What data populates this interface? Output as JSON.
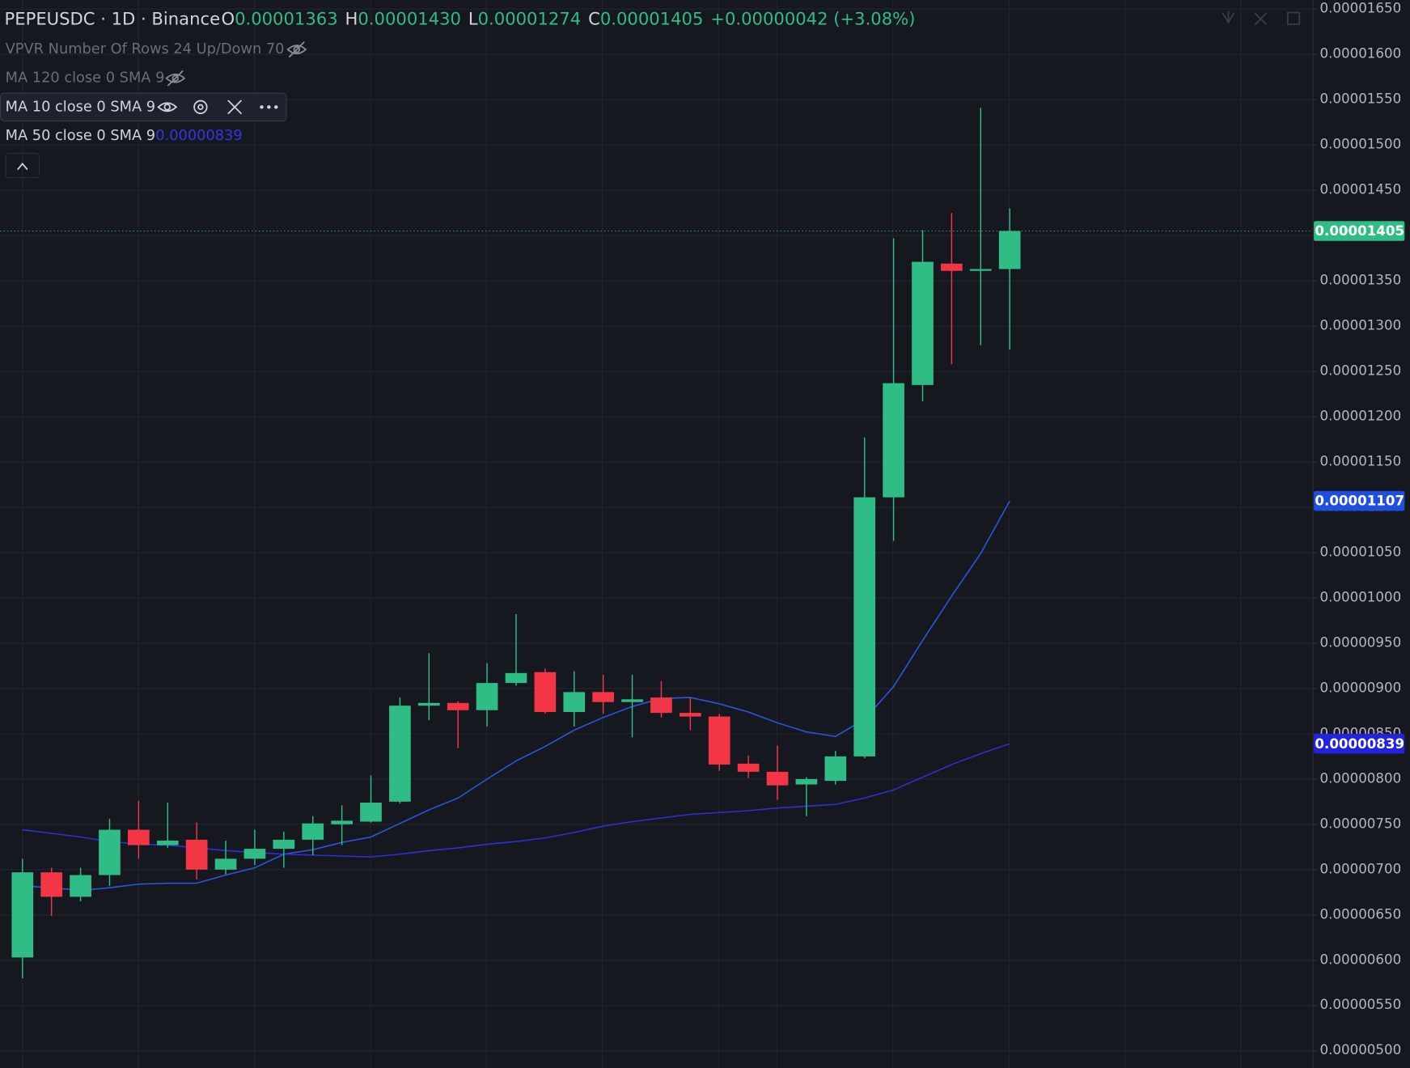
{
  "header": {
    "symbol": "PEPEUSDC · 1D · Binance",
    "ohlc": [
      {
        "key": "O",
        "value": "0.00001363"
      },
      {
        "key": "H",
        "value": "0.00001430"
      },
      {
        "key": "L",
        "value": "0.00001274"
      },
      {
        "key": "C",
        "value": "0.00001405"
      }
    ],
    "change": "+0.00000042 (+3.08%)",
    "indicators": [
      "VPVR Number Of Rows 24 Up/Down 70",
      "MA 120 close 0 SMA 9"
    ]
  },
  "chart_data": {
    "type": "candlestick",
    "up_color": "#2fbd85",
    "down_color": "#f23645",
    "grid": true,
    "open": [
      6.03e-06,
      6.97e-06,
      6.7e-06,
      6.94e-06,
      7.44e-06,
      7.27e-06,
      7.33e-06,
      7e-06,
      7.12e-06,
      7.23e-06,
      7.33e-06,
      7.5e-06,
      7.53e-06,
      7.75e-06,
      8.81e-06,
      8.84e-06,
      8.76e-06,
      9.06e-06,
      9.18e-06,
      8.74e-06,
      8.96e-06,
      8.85e-06,
      8.9e-06,
      8.73e-06,
      8.69e-06,
      8.17e-06,
      8.08e-06,
      7.94e-06,
      7.98e-06,
      8.25e-06,
      1.111e-05,
      1.235e-05,
      1.369e-05,
      1.361e-05,
      1.363e-05
    ],
    "high": [
      7.12e-06,
      7.02e-06,
      7.02e-06,
      7.56e-06,
      7.76e-06,
      7.74e-06,
      7.52e-06,
      7.32e-06,
      7.44e-06,
      7.42e-06,
      7.59e-06,
      7.71e-06,
      8.04e-06,
      8.9e-06,
      9.39e-06,
      8.86e-06,
      9.28e-06,
      9.82e-06,
      9.22e-06,
      9.19e-06,
      9.15e-06,
      9.15e-06,
      9.08e-06,
      8.9e-06,
      8.72e-06,
      8.26e-06,
      8.37e-06,
      8.02e-06,
      8.31e-06,
      1.177e-05,
      1.397e-05,
      1.406e-05,
      1.425e-05,
      1.541e-05,
      1.43e-05
    ],
    "low": [
      5.8e-06,
      6.49e-06,
      6.65e-06,
      6.82e-06,
      7.12e-06,
      7.24e-06,
      6.89e-06,
      6.95e-06,
      7.05e-06,
      7.02e-06,
      7.16e-06,
      7.27e-06,
      7.52e-06,
      7.73e-06,
      8.65e-06,
      8.34e-06,
      8.58e-06,
      9.03e-06,
      8.72e-06,
      8.58e-06,
      8.72e-06,
      8.46e-06,
      8.68e-06,
      8.54e-06,
      8.09e-06,
      8.01e-06,
      7.77e-06,
      7.59e-06,
      7.94e-06,
      8.23e-06,
      1.063e-05,
      1.217e-05,
      1.258e-05,
      1.279e-05,
      1.274e-05
    ],
    "close": [
      6.97e-06,
      6.7e-06,
      6.94e-06,
      7.44e-06,
      7.27e-06,
      7.32e-06,
      7e-06,
      7.12e-06,
      7.23e-06,
      7.33e-06,
      7.51e-06,
      7.54e-06,
      7.74e-06,
      8.81e-06,
      8.84e-06,
      8.76e-06,
      9.06e-06,
      9.17e-06,
      8.74e-06,
      8.96e-06,
      8.85e-06,
      8.88e-06,
      8.73e-06,
      8.69e-06,
      8.16e-06,
      8.08e-06,
      7.93e-06,
      8e-06,
      8.25e-06,
      1.111e-05,
      1.237e-05,
      1.371e-05,
      1.361e-05,
      1.363e-05,
      1.405e-05
    ],
    "series": [
      {
        "name": "MA 10 close 0 SMA 9",
        "color": "#2b57e0",
        "values": [
          6.82e-06,
          6.8e-06,
          6.77e-06,
          6.8e-06,
          6.84e-06,
          6.85e-06,
          6.85e-06,
          6.94e-06,
          7.02e-06,
          7.17e-06,
          7.22e-06,
          7.3e-06,
          7.36e-06,
          7.51e-06,
          7.66e-06,
          7.79e-06,
          8e-06,
          8.2e-06,
          8.36e-06,
          8.54e-06,
          8.68e-06,
          8.8e-06,
          8.89e-06,
          8.9e-06,
          8.83e-06,
          8.74e-06,
          8.62e-06,
          8.52e-06,
          8.47e-06,
          8.66e-06,
          9.02e-06,
          9.53e-06,
          1.002e-05,
          1.049e-05,
          1.107e-05
        ]
      },
      {
        "name": "MA 50 close 0 SMA 9",
        "color": "#2f2fd6",
        "values": [
          7.44e-06,
          7.4e-06,
          7.36e-06,
          7.31e-06,
          7.28e-06,
          7.27e-06,
          7.24e-06,
          7.21e-06,
          7.19e-06,
          7.17e-06,
          7.16e-06,
          7.15e-06,
          7.14e-06,
          7.17e-06,
          7.21e-06,
          7.24e-06,
          7.28e-06,
          7.31e-06,
          7.35e-06,
          7.41e-06,
          7.48e-06,
          7.53e-06,
          7.57e-06,
          7.61e-06,
          7.63e-06,
          7.65e-06,
          7.68e-06,
          7.7e-06,
          7.72e-06,
          7.79e-06,
          7.88e-06,
          8.02e-06,
          8.16e-06,
          8.28e-06,
          8.39e-06
        ]
      }
    ],
    "price_labels": [
      {
        "value": 1.405e-05,
        "label": "0.00001405",
        "color": "#2fbd85"
      },
      {
        "value": 1.107e-05,
        "label": "0.00001107",
        "color": "#1f4fe0"
      },
      {
        "value": 8.39e-06,
        "label": "0.00000839",
        "color": "#2222e0"
      }
    ],
    "ylim": [
      4.81e-06,
      1.66e-05
    ],
    "yticks": [
      {
        "value": 1.65e-05,
        "label": "0.00001650"
      },
      {
        "value": 1.6e-05,
        "label": "0.00001600"
      },
      {
        "value": 1.55e-05,
        "label": "0.00001550"
      },
      {
        "value": 1.5e-05,
        "label": "0.00001500"
      },
      {
        "value": 1.45e-05,
        "label": "0.00001450"
      },
      {
        "value": 1.4e-05,
        "label": "0.00001400"
      },
      {
        "value": 1.35e-05,
        "label": "0.00001350"
      },
      {
        "value": 1.3e-05,
        "label": "0.00001300"
      },
      {
        "value": 1.25e-05,
        "label": "0.00001250"
      },
      {
        "value": 1.2e-05,
        "label": "0.00001200"
      },
      {
        "value": 1.15e-05,
        "label": "0.00001150"
      },
      {
        "value": 1.1e-05,
        "label": "0.00001100"
      },
      {
        "value": 1.05e-05,
        "label": "0.00001050"
      },
      {
        "value": 1e-05,
        "label": "0.00001000"
      },
      {
        "value": 9.5e-06,
        "label": "0.00000950"
      },
      {
        "value": 9e-06,
        "label": "0.00000900"
      },
      {
        "value": 8.5e-06,
        "label": "0.00000850"
      },
      {
        "value": 8e-06,
        "label": "0.00000800"
      },
      {
        "value": 7.5e-06,
        "label": "0.00000750"
      },
      {
        "value": 7e-06,
        "label": "0.00000700"
      },
      {
        "value": 6.5e-06,
        "label": "0.00000650"
      },
      {
        "value": 6e-06,
        "label": "0.00000600"
      },
      {
        "value": 5.5e-06,
        "label": "0.00000550"
      },
      {
        "value": 5e-06,
        "label": "0.00000500"
      }
    ]
  }
}
